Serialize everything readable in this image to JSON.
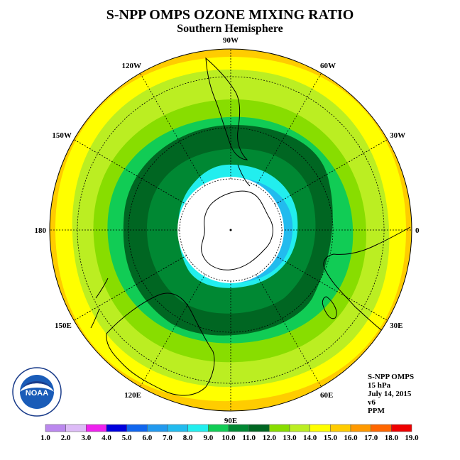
{
  "title": "S-NPP OMPS OZONE MIXING RATIO",
  "subtitle": "Southern Hemisphere",
  "longitude_labels": [
    {
      "text": "90W",
      "angle": 270
    },
    {
      "text": "60W",
      "angle": 300
    },
    {
      "text": "30W",
      "angle": 330
    },
    {
      "text": "0",
      "angle": 0
    },
    {
      "text": "30E",
      "angle": 30
    },
    {
      "text": "60E",
      "angle": 60
    },
    {
      "text": "90E",
      "angle": 90
    },
    {
      "text": "120E",
      "angle": 120
    },
    {
      "text": "150E",
      "angle": 150
    },
    {
      "text": "180",
      "angle": 180
    },
    {
      "text": "150W",
      "angle": 210
    },
    {
      "text": "120W",
      "angle": 240
    }
  ],
  "info": {
    "instrument": "S-NPP OMPS",
    "level": "15 hPa",
    "date": "July 14, 2015",
    "version": "v6",
    "units": "PPM"
  },
  "logo": {
    "text": "NOAA",
    "ring_text": "NATIONAL OCEANIC AND ATMOSPHERIC ADMINISTRATION · U.S. DEPARTMENT OF COMMERCE"
  },
  "colorbar": {
    "ticks": [
      "1.0",
      "2.0",
      "3.0",
      "4.0",
      "5.0",
      "6.0",
      "7.0",
      "8.0",
      "9.0",
      "10.0",
      "11.0",
      "12.0",
      "13.0",
      "14.0",
      "15.0",
      "16.0",
      "17.0",
      "18.0",
      "19.0"
    ],
    "colors": [
      "#bb88ee",
      "#ddbbf7",
      "#ee22ee",
      "#0000dd",
      "#1166ee",
      "#2299ee",
      "#22bbee",
      "#22eeee",
      "#11cc55",
      "#008833",
      "#006622",
      "#88dd00",
      "#bbee22",
      "#ffff00",
      "#ffcc00",
      "#ff9900",
      "#ff6600",
      "#ee0000",
      "#884422"
    ]
  },
  "map": {
    "polar_hole_color": "#ffffff",
    "hole_boundary_latitude": -70
  }
}
